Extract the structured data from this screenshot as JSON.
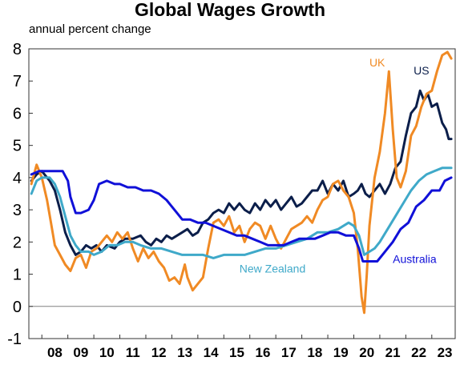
{
  "chart_data": {
    "type": "line",
    "title": "Global Wages Growth",
    "subtitle": "annual percent change",
    "xlabel": "",
    "ylabel": "",
    "xlim": [
      2007.5,
      2023.9
    ],
    "ylim": [
      -1,
      8
    ],
    "yticks": [
      "-1",
      "0",
      "1",
      "2",
      "3",
      "4",
      "5",
      "6",
      "7",
      "8"
    ],
    "xticks": [
      {
        "label": "08",
        "x": 2008.5
      },
      {
        "label": "09",
        "x": 2009.5
      },
      {
        "label": "10",
        "x": 2010.5
      },
      {
        "label": "11",
        "x": 2011.5
      },
      {
        "label": "12",
        "x": 2012.5
      },
      {
        "label": "13",
        "x": 2013.5
      },
      {
        "label": "14",
        "x": 2014.5
      },
      {
        "label": "15",
        "x": 2015.5
      },
      {
        "label": "16",
        "x": 2016.5
      },
      {
        "label": "17",
        "x": 2017.5
      },
      {
        "label": "18",
        "x": 2018.5
      },
      {
        "label": "19",
        "x": 2019.5
      },
      {
        "label": "20",
        "x": 2020.5
      },
      {
        "label": "21",
        "x": 2021.5
      },
      {
        "label": "22",
        "x": 2022.5
      },
      {
        "label": "23",
        "x": 2023.5
      }
    ],
    "zero_line": true,
    "grid": false,
    "legend": "direct labels",
    "series": [
      {
        "name": "US",
        "color": "#0b1e4a",
        "points": [
          [
            2007.6,
            3.9
          ],
          [
            2007.8,
            4.1
          ],
          [
            2008.0,
            4.2
          ],
          [
            2008.3,
            3.9
          ],
          [
            2008.5,
            3.6
          ],
          [
            2008.7,
            3.0
          ],
          [
            2008.9,
            2.3
          ],
          [
            2009.1,
            1.9
          ],
          [
            2009.3,
            1.6
          ],
          [
            2009.5,
            1.7
          ],
          [
            2009.7,
            1.9
          ],
          [
            2009.9,
            1.8
          ],
          [
            2010.1,
            1.9
          ],
          [
            2010.3,
            1.7
          ],
          [
            2010.5,
            1.9
          ],
          [
            2010.8,
            1.8
          ],
          [
            2011.0,
            2.0
          ],
          [
            2011.2,
            2.1
          ],
          [
            2011.5,
            2.1
          ],
          [
            2011.8,
            2.2
          ],
          [
            2012.0,
            2.0
          ],
          [
            2012.2,
            1.9
          ],
          [
            2012.4,
            2.1
          ],
          [
            2012.6,
            2.0
          ],
          [
            2012.8,
            2.2
          ],
          [
            2013.0,
            2.1
          ],
          [
            2013.2,
            2.2
          ],
          [
            2013.4,
            2.3
          ],
          [
            2013.6,
            2.4
          ],
          [
            2013.8,
            2.2
          ],
          [
            2014.0,
            2.3
          ],
          [
            2014.2,
            2.6
          ],
          [
            2014.4,
            2.7
          ],
          [
            2014.6,
            2.9
          ],
          [
            2014.8,
            3.0
          ],
          [
            2015.0,
            2.9
          ],
          [
            2015.2,
            3.2
          ],
          [
            2015.4,
            3.0
          ],
          [
            2015.6,
            3.2
          ],
          [
            2015.8,
            3.0
          ],
          [
            2016.0,
            2.9
          ],
          [
            2016.2,
            3.2
          ],
          [
            2016.4,
            3.0
          ],
          [
            2016.6,
            3.3
          ],
          [
            2016.8,
            3.1
          ],
          [
            2017.0,
            3.3
          ],
          [
            2017.2,
            3.0
          ],
          [
            2017.4,
            3.2
          ],
          [
            2017.6,
            3.4
          ],
          [
            2017.8,
            3.1
          ],
          [
            2018.0,
            3.2
          ],
          [
            2018.2,
            3.4
          ],
          [
            2018.4,
            3.6
          ],
          [
            2018.6,
            3.6
          ],
          [
            2018.8,
            3.9
          ],
          [
            2019.0,
            3.5
          ],
          [
            2019.2,
            3.8
          ],
          [
            2019.4,
            3.6
          ],
          [
            2019.6,
            3.9
          ],
          [
            2019.8,
            3.4
          ],
          [
            2020.0,
            3.5
          ],
          [
            2020.15,
            3.6
          ],
          [
            2020.3,
            3.8
          ],
          [
            2020.45,
            3.5
          ],
          [
            2020.6,
            3.4
          ],
          [
            2020.8,
            3.6
          ],
          [
            2021.0,
            3.8
          ],
          [
            2021.2,
            3.5
          ],
          [
            2021.4,
            3.8
          ],
          [
            2021.6,
            4.3
          ],
          [
            2021.8,
            4.5
          ],
          [
            2022.0,
            5.3
          ],
          [
            2022.2,
            6.0
          ],
          [
            2022.4,
            6.2
          ],
          [
            2022.55,
            6.7
          ],
          [
            2022.7,
            6.4
          ],
          [
            2022.85,
            6.6
          ],
          [
            2023.0,
            6.2
          ],
          [
            2023.2,
            6.3
          ],
          [
            2023.4,
            5.7
          ],
          [
            2023.55,
            5.5
          ],
          [
            2023.65,
            5.2
          ],
          [
            2023.75,
            5.2
          ]
        ]
      },
      {
        "name": "UK",
        "color": "#f08a24",
        "points": [
          [
            2007.6,
            3.8
          ],
          [
            2007.8,
            4.4
          ],
          [
            2008.0,
            4.0
          ],
          [
            2008.2,
            3.3
          ],
          [
            2008.35,
            2.6
          ],
          [
            2008.5,
            1.9
          ],
          [
            2008.7,
            1.6
          ],
          [
            2008.9,
            1.3
          ],
          [
            2009.1,
            1.1
          ],
          [
            2009.3,
            1.5
          ],
          [
            2009.5,
            1.6
          ],
          [
            2009.7,
            1.2
          ],
          [
            2009.9,
            1.7
          ],
          [
            2010.1,
            1.8
          ],
          [
            2010.3,
            2.0
          ],
          [
            2010.5,
            2.2
          ],
          [
            2010.7,
            2.0
          ],
          [
            2010.9,
            2.3
          ],
          [
            2011.1,
            2.1
          ],
          [
            2011.3,
            2.3
          ],
          [
            2011.5,
            1.8
          ],
          [
            2011.7,
            1.4
          ],
          [
            2011.9,
            1.8
          ],
          [
            2012.1,
            1.5
          ],
          [
            2012.3,
            1.7
          ],
          [
            2012.5,
            1.4
          ],
          [
            2012.7,
            1.2
          ],
          [
            2012.9,
            0.8
          ],
          [
            2013.1,
            0.9
          ],
          [
            2013.3,
            0.7
          ],
          [
            2013.5,
            1.3
          ],
          [
            2013.6,
            0.9
          ],
          [
            2013.8,
            0.5
          ],
          [
            2014.0,
            0.7
          ],
          [
            2014.2,
            0.9
          ],
          [
            2014.4,
            1.8
          ],
          [
            2014.6,
            2.6
          ],
          [
            2014.8,
            2.7
          ],
          [
            2015.0,
            2.5
          ],
          [
            2015.2,
            2.8
          ],
          [
            2015.4,
            2.3
          ],
          [
            2015.6,
            2.5
          ],
          [
            2015.8,
            2.0
          ],
          [
            2016.0,
            2.4
          ],
          [
            2016.2,
            2.6
          ],
          [
            2016.4,
            2.5
          ],
          [
            2016.6,
            2.1
          ],
          [
            2016.8,
            2.5
          ],
          [
            2017.0,
            2.1
          ],
          [
            2017.2,
            1.8
          ],
          [
            2017.4,
            2.1
          ],
          [
            2017.6,
            2.4
          ],
          [
            2017.8,
            2.5
          ],
          [
            2018.0,
            2.6
          ],
          [
            2018.2,
            2.8
          ],
          [
            2018.4,
            2.6
          ],
          [
            2018.6,
            3.0
          ],
          [
            2018.8,
            3.3
          ],
          [
            2019.0,
            3.4
          ],
          [
            2019.2,
            3.8
          ],
          [
            2019.4,
            3.9
          ],
          [
            2019.6,
            3.6
          ],
          [
            2019.8,
            3.4
          ],
          [
            2020.0,
            2.9
          ],
          [
            2020.15,
            1.8
          ],
          [
            2020.3,
            0.3
          ],
          [
            2020.4,
            -0.2
          ],
          [
            2020.5,
            1.0
          ],
          [
            2020.6,
            2.5
          ],
          [
            2020.8,
            4.0
          ],
          [
            2021.0,
            4.8
          ],
          [
            2021.2,
            6.0
          ],
          [
            2021.35,
            7.3
          ],
          [
            2021.5,
            5.5
          ],
          [
            2021.65,
            4.0
          ],
          [
            2021.8,
            3.7
          ],
          [
            2022.0,
            4.2
          ],
          [
            2022.2,
            5.3
          ],
          [
            2022.4,
            5.6
          ],
          [
            2022.6,
            6.2
          ],
          [
            2022.8,
            6.6
          ],
          [
            2023.0,
            6.7
          ],
          [
            2023.2,
            7.3
          ],
          [
            2023.4,
            7.8
          ],
          [
            2023.6,
            7.9
          ],
          [
            2023.75,
            7.7
          ]
        ]
      },
      {
        "name": "New Zealand",
        "color": "#3fa9c9",
        "points": [
          [
            2007.6,
            3.5
          ],
          [
            2007.8,
            3.9
          ],
          [
            2008.0,
            4.0
          ],
          [
            2008.3,
            4.0
          ],
          [
            2008.5,
            3.8
          ],
          [
            2008.7,
            3.4
          ],
          [
            2008.9,
            2.8
          ],
          [
            2009.1,
            2.2
          ],
          [
            2009.3,
            1.9
          ],
          [
            2009.5,
            1.7
          ],
          [
            2009.8,
            1.7
          ],
          [
            2010.0,
            1.6
          ],
          [
            2010.3,
            1.7
          ],
          [
            2010.6,
            1.9
          ],
          [
            2010.9,
            1.9
          ],
          [
            2011.2,
            2.0
          ],
          [
            2011.5,
            2.0
          ],
          [
            2011.8,
            1.9
          ],
          [
            2012.2,
            1.8
          ],
          [
            2012.6,
            1.8
          ],
          [
            2013.0,
            1.7
          ],
          [
            2013.4,
            1.6
          ],
          [
            2013.8,
            1.6
          ],
          [
            2014.2,
            1.6
          ],
          [
            2014.6,
            1.5
          ],
          [
            2015.0,
            1.6
          ],
          [
            2015.4,
            1.6
          ],
          [
            2015.8,
            1.6
          ],
          [
            2016.2,
            1.7
          ],
          [
            2016.6,
            1.8
          ],
          [
            2017.0,
            1.8
          ],
          [
            2017.4,
            1.9
          ],
          [
            2017.8,
            2.0
          ],
          [
            2018.2,
            2.1
          ],
          [
            2018.6,
            2.3
          ],
          [
            2019.0,
            2.3
          ],
          [
            2019.4,
            2.4
          ],
          [
            2019.8,
            2.6
          ],
          [
            2020.0,
            2.5
          ],
          [
            2020.2,
            2.2
          ],
          [
            2020.4,
            1.6
          ],
          [
            2020.6,
            1.7
          ],
          [
            2020.8,
            1.8
          ],
          [
            2021.0,
            2.0
          ],
          [
            2021.3,
            2.4
          ],
          [
            2021.6,
            2.8
          ],
          [
            2021.9,
            3.2
          ],
          [
            2022.2,
            3.6
          ],
          [
            2022.5,
            3.9
          ],
          [
            2022.8,
            4.1
          ],
          [
            2023.1,
            4.2
          ],
          [
            2023.4,
            4.3
          ],
          [
            2023.75,
            4.3
          ]
        ]
      },
      {
        "name": "Australia",
        "color": "#1010d8",
        "points": [
          [
            2007.6,
            4.1
          ],
          [
            2007.9,
            4.2
          ],
          [
            2008.2,
            4.2
          ],
          [
            2008.5,
            4.2
          ],
          [
            2008.8,
            4.2
          ],
          [
            2009.0,
            3.9
          ],
          [
            2009.1,
            3.4
          ],
          [
            2009.3,
            2.9
          ],
          [
            2009.5,
            2.9
          ],
          [
            2009.8,
            3.0
          ],
          [
            2010.0,
            3.3
          ],
          [
            2010.2,
            3.8
          ],
          [
            2010.5,
            3.9
          ],
          [
            2010.8,
            3.8
          ],
          [
            2011.0,
            3.8
          ],
          [
            2011.3,
            3.7
          ],
          [
            2011.6,
            3.7
          ],
          [
            2011.9,
            3.6
          ],
          [
            2012.2,
            3.6
          ],
          [
            2012.5,
            3.5
          ],
          [
            2012.8,
            3.3
          ],
          [
            2013.0,
            3.1
          ],
          [
            2013.2,
            2.9
          ],
          [
            2013.4,
            2.7
          ],
          [
            2013.7,
            2.7
          ],
          [
            2014.0,
            2.6
          ],
          [
            2014.3,
            2.6
          ],
          [
            2014.6,
            2.5
          ],
          [
            2014.9,
            2.4
          ],
          [
            2015.2,
            2.3
          ],
          [
            2015.5,
            2.2
          ],
          [
            2015.8,
            2.2
          ],
          [
            2016.1,
            2.1
          ],
          [
            2016.4,
            2.0
          ],
          [
            2016.7,
            1.9
          ],
          [
            2017.0,
            1.9
          ],
          [
            2017.3,
            1.9
          ],
          [
            2017.6,
            2.0
          ],
          [
            2017.9,
            2.1
          ],
          [
            2018.2,
            2.1
          ],
          [
            2018.5,
            2.1
          ],
          [
            2018.8,
            2.2
          ],
          [
            2019.1,
            2.3
          ],
          [
            2019.4,
            2.3
          ],
          [
            2019.7,
            2.2
          ],
          [
            2020.0,
            2.2
          ],
          [
            2020.2,
            1.8
          ],
          [
            2020.35,
            1.4
          ],
          [
            2020.6,
            1.4
          ],
          [
            2020.9,
            1.4
          ],
          [
            2021.2,
            1.7
          ],
          [
            2021.5,
            2.0
          ],
          [
            2021.8,
            2.4
          ],
          [
            2022.1,
            2.6
          ],
          [
            2022.4,
            3.1
          ],
          [
            2022.7,
            3.3
          ],
          [
            2023.0,
            3.6
          ],
          [
            2023.3,
            3.6
          ],
          [
            2023.5,
            3.9
          ],
          [
            2023.75,
            4.0
          ]
        ]
      }
    ],
    "series_labels": [
      {
        "series": "UK",
        "text": "UK",
        "x": 2020.6,
        "y": 7.45
      },
      {
        "series": "US",
        "text": "US",
        "x": 2022.3,
        "y": 7.2
      },
      {
        "series": "New Zealand",
        "text": "New Zealand",
        "x": 2015.6,
        "y": 1.05
      },
      {
        "series": "Australia",
        "text": "Australia",
        "x": 2021.5,
        "y": 1.35
      }
    ]
  }
}
